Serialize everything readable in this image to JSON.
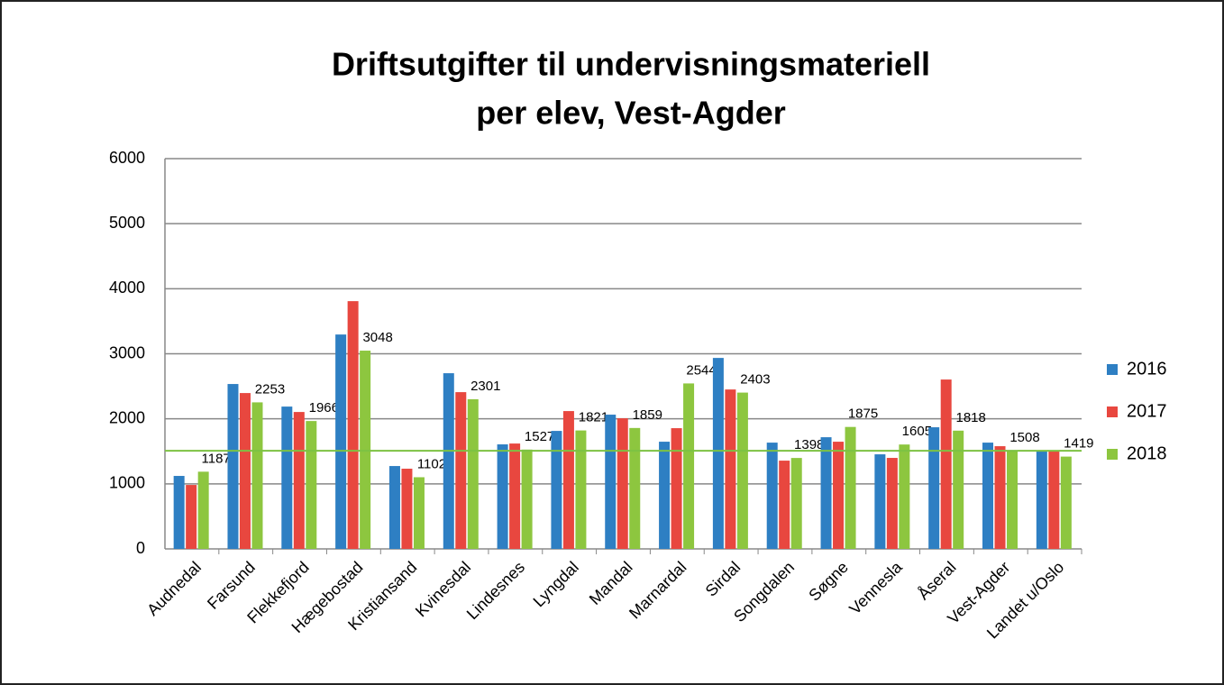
{
  "chart_data": {
    "type": "bar",
    "title": [
      "Driftsutgifter til undervisningsmateriell",
      "per elev, Vest-Agder"
    ],
    "categories": [
      "Audnedal",
      "Farsund",
      "Flekkefjord",
      "Hægebostad",
      "Kristiansand",
      "Kvinesdal",
      "Lindesnes",
      "Lyngdal",
      "Mandal",
      "Marnardal",
      "Sirdal",
      "Songdalen",
      "Søgne",
      "Vennesla",
      "Åseral",
      "Vest-Agder",
      "Landet u/Oslo"
    ],
    "series": [
      {
        "name": "2016",
        "color": "#2e7fc3",
        "values": [
          1122,
          2535,
          2188,
          3296,
          1274,
          2701,
          1607,
          1814,
          2064,
          1648,
          2936,
          1634,
          1717,
          1454,
          1870,
          1634,
          1510
        ]
      },
      {
        "name": "2017",
        "color": "#e8473f",
        "values": [
          983,
          2396,
          2105,
          3809,
          1233,
          2410,
          1620,
          2119,
          2008,
          1856,
          2451,
          1357,
          1648,
          1399,
          2604,
          1579,
          1510
        ]
      },
      {
        "name": "2018",
        "color": "#8dc63f",
        "values": [
          1187,
          2253,
          1966,
          3048,
          1102,
          2301,
          1527,
          1821,
          1859,
          2544,
          2403,
          1398,
          1875,
          1605,
          1818,
          1508,
          1419
        ],
        "show_value_labels": true
      }
    ],
    "reference_line": {
      "value": 1508,
      "color": "#7dc243"
    },
    "ylim": [
      0,
      6000
    ],
    "yticks": [
      0,
      1000,
      2000,
      3000,
      4000,
      5000,
      6000
    ],
    "grid": true,
    "legend": "right"
  }
}
